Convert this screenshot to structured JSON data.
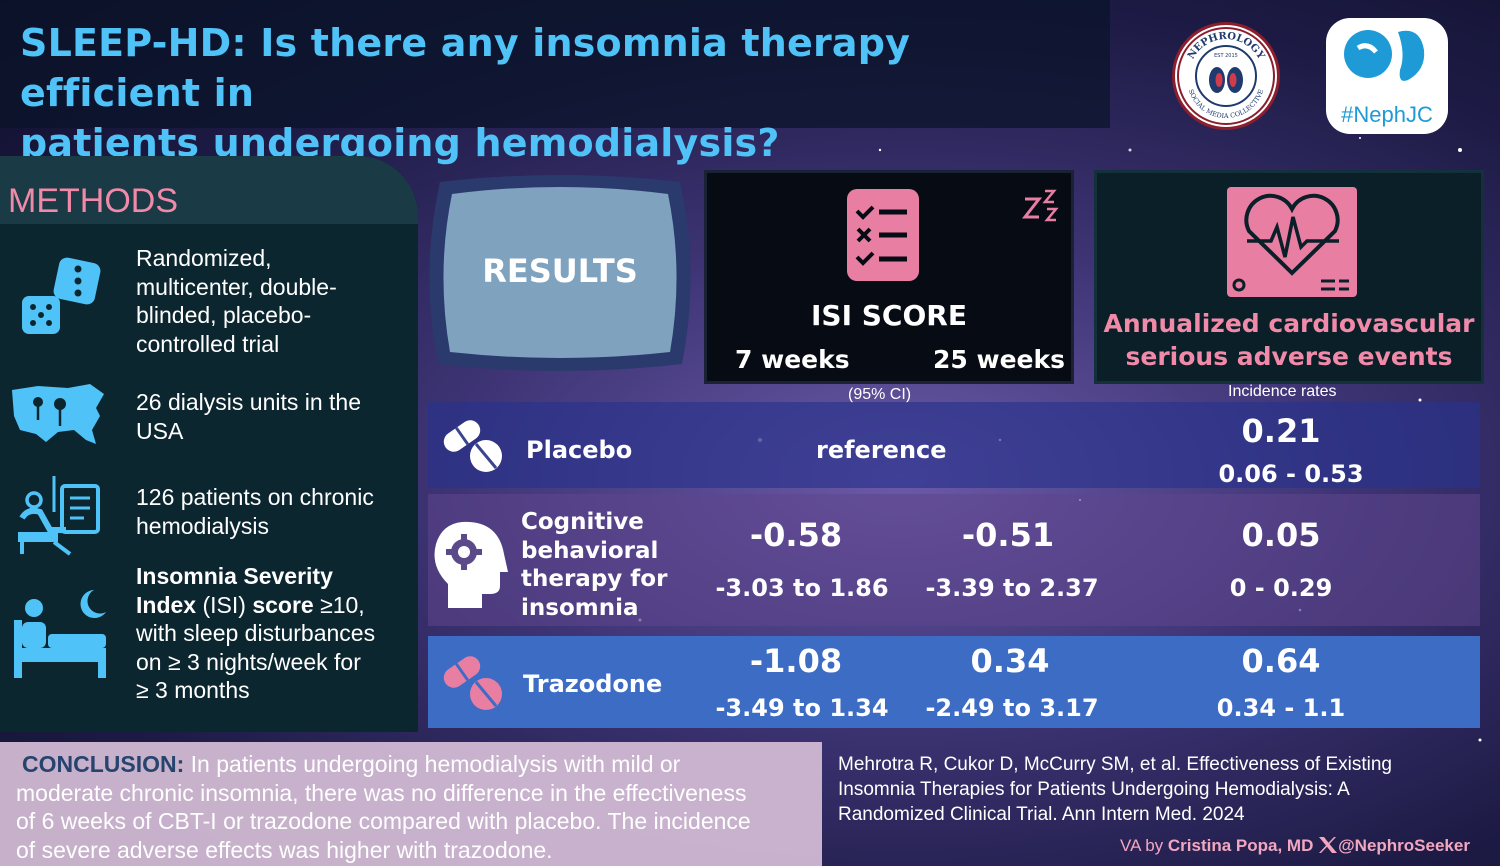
{
  "header": {
    "title_line1": "SLEEP-HD: Is there any insomnia therapy efficient in",
    "title_line2": "patients undergoing hemodialysis?"
  },
  "logos": {
    "nephrology_ring_top": "NEPHROLOGY",
    "nephrology_ring_bottom": "SOCIAL MEDIA COLLECTIVE",
    "nephrology_est": "EST 2015",
    "nephjc": "#NephJC"
  },
  "methods": {
    "title": "METHODS",
    "items": [
      {
        "lines": [
          "Randomized,",
          "multicenter, double-",
          "blinded, placebo-",
          "controlled trial"
        ],
        "icon": "dice-icon"
      },
      {
        "lines": [
          "26 dialysis units in the",
          "USA"
        ],
        "icon": "usa-map-icon"
      },
      {
        "lines": [
          "126 patients on chronic",
          "hemodialysis"
        ],
        "icon": "dialysis-patient-icon"
      },
      {
        "line1_bold": "Insomnia Severity",
        "line2_bold_a": "Index",
        "line2_regular": " (ISI) ",
        "line2_bold_b": "score",
        "line2_tail": " ≥10,",
        "line3": "with sleep disturbances",
        "line4": "on ≥ 3 nights/week for",
        "line5": "≥ 3 months",
        "icon": "bed-moon-icon"
      }
    ]
  },
  "results": {
    "label": "RESULTS",
    "isi": {
      "title": "ISI SCORE",
      "col1": "7 weeks",
      "col2": "25 weeks",
      "ci_note": "(95% CI)",
      "icon": "checklist-icon",
      "sleep_icon": "zzz-icon"
    },
    "cv": {
      "title_line1": "Annualized cardiovascular",
      "title_line2": "serious adverse events",
      "note": "Incidence rates",
      "icon": "heart-monitor-icon"
    },
    "rows": [
      {
        "name": "Placebo",
        "isi": "reference",
        "cv_value": "0.21",
        "cv_ci": "0.06 - 0.53",
        "icon": "pills-icon"
      },
      {
        "name_lines": [
          "Cognitive",
          "behavioral",
          "therapy for",
          "insomnia"
        ],
        "w7": "-0.58",
        "w7_ci": "-3.03 to 1.86",
        "w25": "-0.51",
        "w25_ci": "-3.39 to 2.37",
        "cv_value": "0.05",
        "cv_ci": "0 - 0.29",
        "icon": "head-gear-icon"
      },
      {
        "name": "Trazodone",
        "w7": "-1.08",
        "w7_ci": "-3.49 to 1.34",
        "w25": "0.34",
        "w25_ci": "-2.49 to 3.17",
        "cv_value": "0.64",
        "cv_ci": "0.34 - 1.1",
        "icon": "pink-pills-icon"
      }
    ]
  },
  "conclusion": {
    "label": "CONCLUSION:",
    "text_line1": " In patients undergoing hemodialysis with mild or",
    "text_line2": "moderate chronic insomnia, there was no difference in the effectiveness",
    "text_line3": "of 6 weeks of CBT-I or trazodone compared with placebo. The incidence",
    "text_line4": "of severe adverse effects was higher with trazodone."
  },
  "citation": {
    "line1": "Mehrotra R, Cukor D, McCurry SM, et al. Effectiveness of Existing",
    "line2": "Insomnia Therapies for Patients Undergoing Hemodialysis: A",
    "line3": "Randomized Clinical Trial. Ann Intern Med. 2024"
  },
  "credit": {
    "prefix": "VA by ",
    "author": "Cristina Popa, MD",
    "handle": "@NephroSeeker",
    "icon": "x-logo-icon"
  },
  "colors": {
    "title": "#4fc3f7",
    "pink": "#f08aa8",
    "icon_blue": "#4fc3f7"
  }
}
